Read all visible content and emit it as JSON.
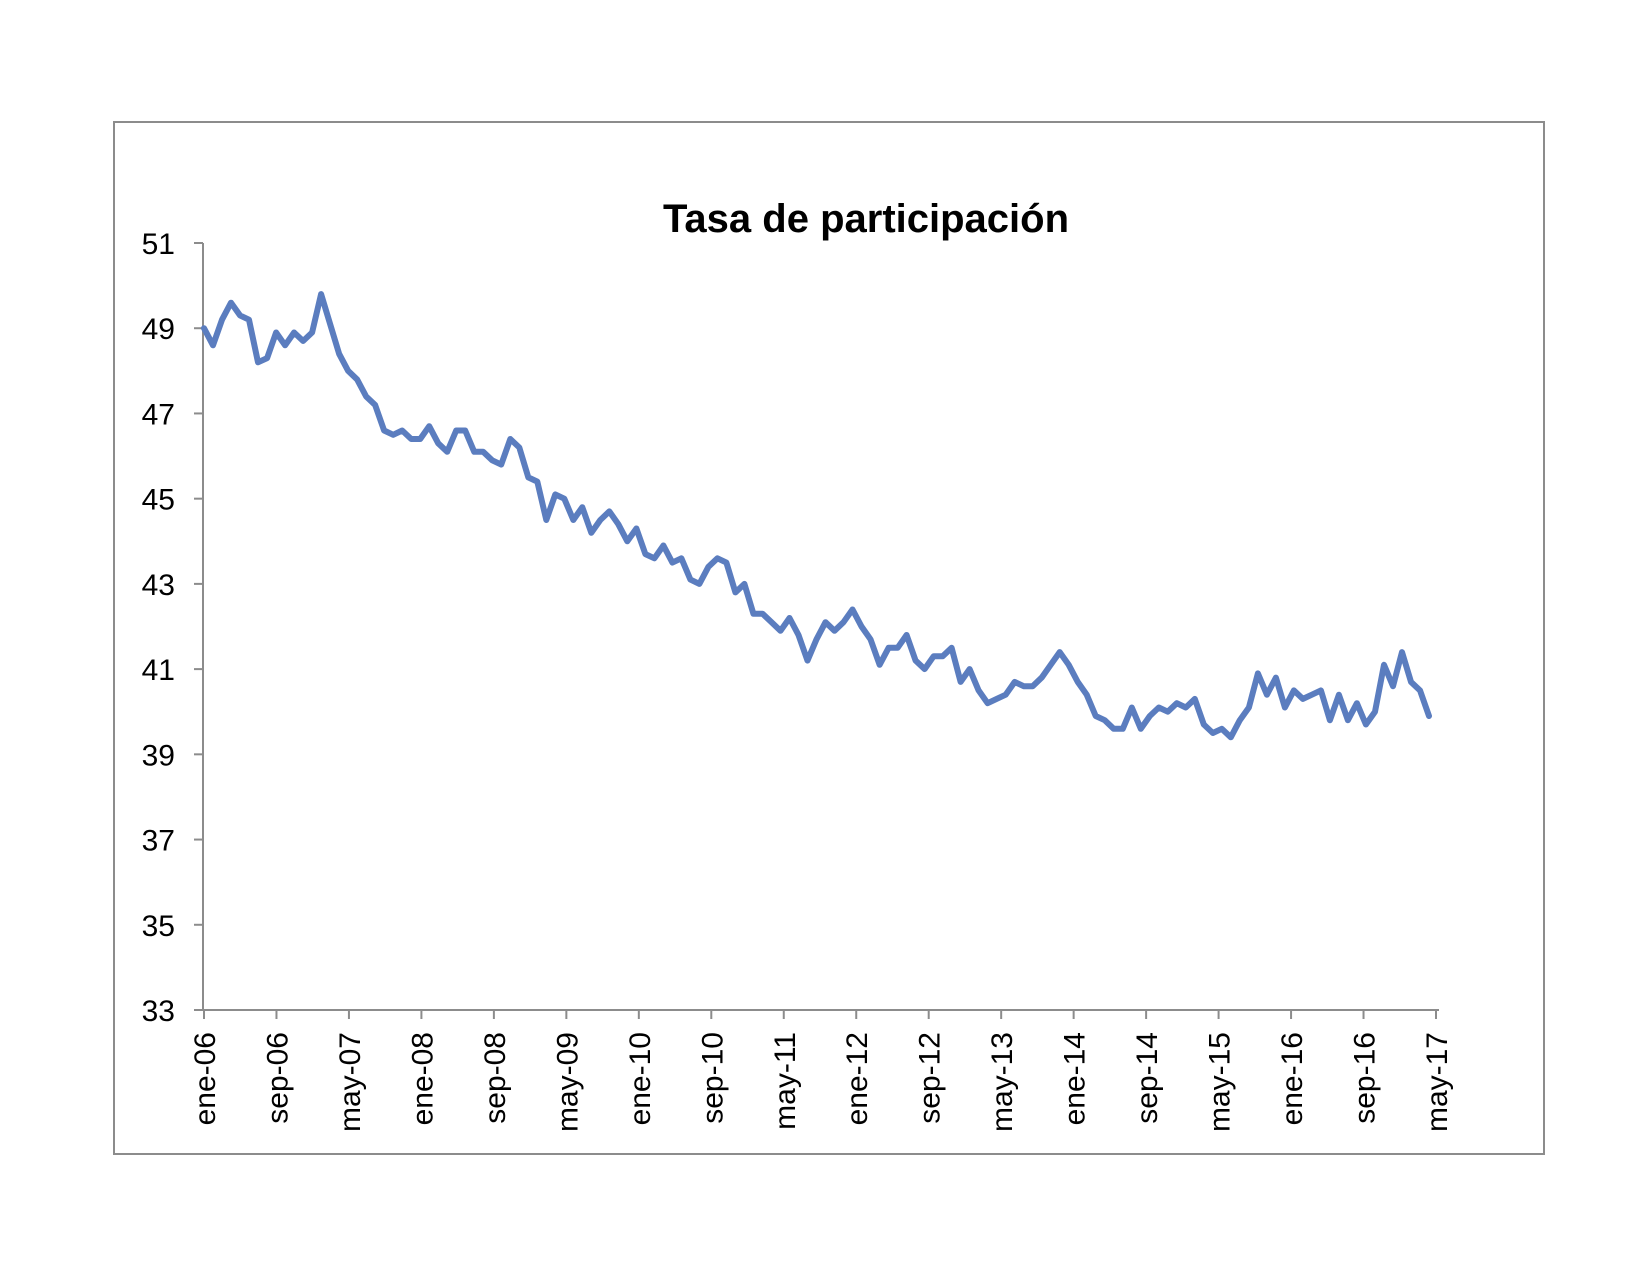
{
  "chart_data": {
    "type": "line",
    "title": "Tasa de participación",
    "xlabel": "",
    "ylabel": "",
    "ylim": [
      33,
      51
    ],
    "yticks": [
      51,
      49,
      47,
      45,
      43,
      41,
      39,
      37,
      35,
      33
    ],
    "grid": false,
    "legend": "none",
    "x_tick_labels": [
      "ene-06",
      "sep-06",
      "may-07",
      "ene-08",
      "sep-08",
      "may-09",
      "ene-10",
      "sep-10",
      "may-11",
      "ene-12",
      "sep-12",
      "may-13",
      "ene-14",
      "sep-14",
      "may-15",
      "ene-16",
      "sep-16",
      "may-17"
    ],
    "series": [
      {
        "color": "#5b7dbf",
        "values": [
          49.0,
          48.6,
          49.2,
          49.6,
          49.3,
          49.2,
          48.2,
          48.3,
          48.9,
          48.6,
          48.9,
          48.7,
          48.9,
          49.8,
          49.1,
          48.4,
          48.0,
          47.8,
          47.4,
          47.2,
          46.6,
          46.5,
          46.6,
          46.4,
          46.4,
          46.7,
          46.3,
          46.1,
          46.6,
          46.6,
          46.1,
          46.1,
          45.9,
          45.8,
          46.4,
          46.2,
          45.5,
          45.4,
          44.5,
          45.1,
          45.0,
          44.5,
          44.8,
          44.2,
          44.5,
          44.7,
          44.4,
          44.0,
          44.3,
          43.7,
          43.6,
          43.9,
          43.5,
          43.6,
          43.1,
          43.0,
          43.4,
          43.6,
          43.5,
          42.8,
          43.0,
          42.3,
          42.3,
          42.1,
          41.9,
          42.2,
          41.8,
          41.2,
          41.7,
          42.1,
          41.9,
          42.1,
          42.4,
          42.0,
          41.7,
          41.1,
          41.5,
          41.5,
          41.8,
          41.2,
          41.0,
          41.3,
          41.3,
          41.5,
          40.7,
          41.0,
          40.5,
          40.2,
          40.3,
          40.4,
          40.7,
          40.6,
          40.6,
          40.8,
          41.1,
          41.4,
          41.1,
          40.7,
          40.4,
          39.9,
          39.8,
          39.6,
          39.6,
          40.1,
          39.6,
          39.9,
          40.1,
          40.0,
          40.2,
          40.1,
          40.3,
          39.7,
          39.5,
          39.6,
          39.4,
          39.8,
          40.1,
          40.9,
          40.4,
          40.8,
          40.1,
          40.5,
          40.3,
          40.4,
          40.5,
          39.8,
          40.4,
          39.8,
          40.2,
          39.7,
          40.0,
          41.1,
          40.6,
          41.4,
          40.7,
          40.5,
          39.9
        ]
      }
    ]
  }
}
